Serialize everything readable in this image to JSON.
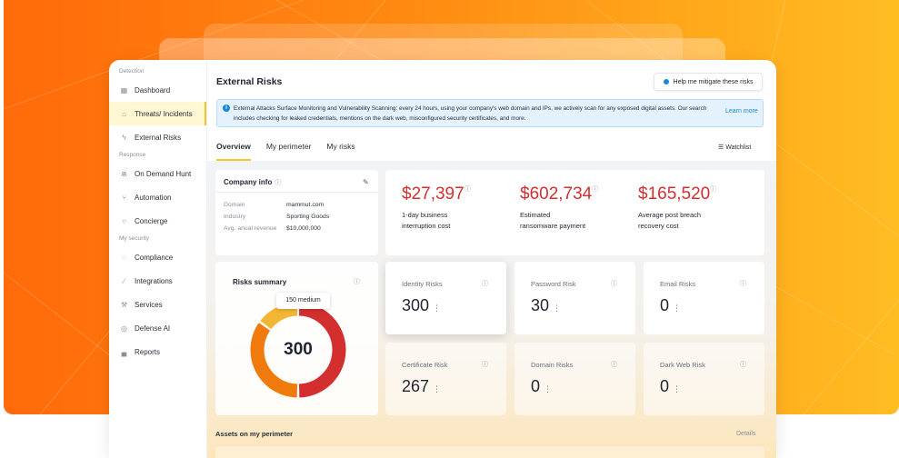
{
  "sidebar": {
    "sections": [
      {
        "title": "Detection",
        "items": [
          {
            "label": "Dashboard",
            "icon": "grid-icon"
          },
          {
            "label": "Threats/ Incidents",
            "icon": "bell-icon",
            "active": true
          },
          {
            "label": "External Risks",
            "icon": "bolt-icon"
          }
        ]
      },
      {
        "title": "Response",
        "items": [
          {
            "label": "On Demand Hunt",
            "icon": "crosshair-icon"
          },
          {
            "label": "Automation",
            "icon": "fork-icon"
          },
          {
            "label": "Concierge",
            "icon": "chat-icon"
          }
        ]
      },
      {
        "title": "My security",
        "items": [
          {
            "label": "Compliance",
            "icon": "shield-icon"
          },
          {
            "label": "Integrations",
            "icon": "link-icon"
          },
          {
            "label": "Services",
            "icon": "wrench-icon"
          },
          {
            "label": "Defense AI",
            "icon": "ai-badge-icon"
          },
          {
            "label": "Reports",
            "icon": "bar-chart-icon"
          }
        ]
      }
    ]
  },
  "header": {
    "title": "External Risks",
    "help_button": "Help me mitigate these risks"
  },
  "banner": {
    "text": "External Attacks Surface Monitoring and Vulnerability Scanning: every 24 hours, using your company's web domain and IPs, we actively scan for any exposed digital assets. Our search includes checking for leaked credentials, mentions on the dark web, misconfigured security certificates, and more.",
    "link": "Learn more"
  },
  "tabs": [
    {
      "label": "Overview",
      "active": true
    },
    {
      "label": "My perimeter"
    },
    {
      "label": "My risks"
    }
  ],
  "watchlist": "Watchlist",
  "company_info": {
    "title": "Company info",
    "rows": [
      {
        "key": "Domain",
        "value": "mammut.com"
      },
      {
        "key": "Industry",
        "value": "Sporting Goods"
      },
      {
        "key": "Avg. anual revenue",
        "value": "$10,000,000"
      }
    ]
  },
  "costs": [
    {
      "amount": "$27,397",
      "label_line1": "1-day business",
      "label_line2": "interruption cost"
    },
    {
      "amount": "$602,734",
      "label_line1": "Estimated",
      "label_line2": "ransomware payment"
    },
    {
      "amount": "$165,520",
      "label_line1": "Average post breach",
      "label_line2": "recovery cost"
    }
  ],
  "risks_summary": {
    "title": "Risks summary",
    "total": "300",
    "tooltip": "150 medium",
    "segments": [
      {
        "name": "medium",
        "value": 150,
        "color": "#d32f2f"
      },
      {
        "name": "orange",
        "value": 105,
        "color": "#f07a0c"
      },
      {
        "name": "yellow",
        "value": 45,
        "color": "#f2b634"
      }
    ]
  },
  "risk_tiles": [
    {
      "title": "Identity Risks",
      "value": "300"
    },
    {
      "title": "Password Risk",
      "value": "30"
    },
    {
      "title": "Email Risks",
      "value": "0"
    },
    {
      "title": "Certificate Risk",
      "value": "267"
    },
    {
      "title": "Domain Risks",
      "value": "0"
    },
    {
      "title": "Dark Web Risk",
      "value": "0"
    }
  ],
  "assets": {
    "title": "Assets on my perimeter",
    "details": "Details"
  },
  "colors": {
    "accent": "#f0c72a",
    "money": "#d32f2f",
    "link": "#1a88d6",
    "backdrop_start": "#ff6a0a",
    "backdrop_end": "#ffbd22"
  }
}
